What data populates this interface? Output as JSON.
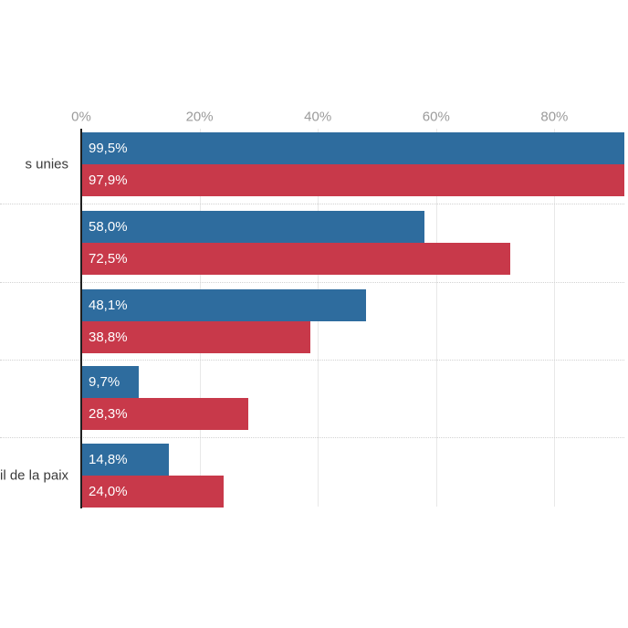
{
  "chart_data": {
    "type": "bar",
    "orientation": "horizontal",
    "title": "",
    "categories": [
      "s unies",
      "",
      "",
      "",
      "il de la paix"
    ],
    "categories_note": "left category labels are cut off by the image crop; only these fragments are visible",
    "series": [
      {
        "name": "series-blue",
        "color": "#2e6c9e",
        "values": [
          99.5,
          58.0,
          48.1,
          9.7,
          14.8
        ],
        "value_labels": [
          "99,5%",
          "58,0%",
          "48,1%",
          "9,7%",
          "14,8%"
        ]
      },
      {
        "name": "series-red",
        "color": "#c8394a",
        "values": [
          97.9,
          72.5,
          38.8,
          28.3,
          24.0
        ],
        "value_labels": [
          "97,9%",
          "72,5%",
          "38,8%",
          "28,3%",
          "24,0%"
        ]
      }
    ],
    "x_ticks": [
      {
        "label": "0%",
        "value": 0
      },
      {
        "label": "20%",
        "value": 20
      },
      {
        "label": "40%",
        "value": 40
      },
      {
        "label": "60%",
        "value": 60
      },
      {
        "label": "80%",
        "value": 80
      }
    ],
    "xlim": [
      0,
      100
    ],
    "grid": true,
    "legend": "none"
  },
  "style": {
    "background": "#ffffff",
    "bar_blue": "#2e6c9e",
    "bar_red": "#c8394a",
    "axis_line": "#1f1f1f",
    "gridline": "#e8e8e8",
    "separator": "#d2d2d2",
    "tick_text": "#9b9b9b",
    "category_text": "#3a3a3a",
    "value_text": "#ffffff"
  }
}
